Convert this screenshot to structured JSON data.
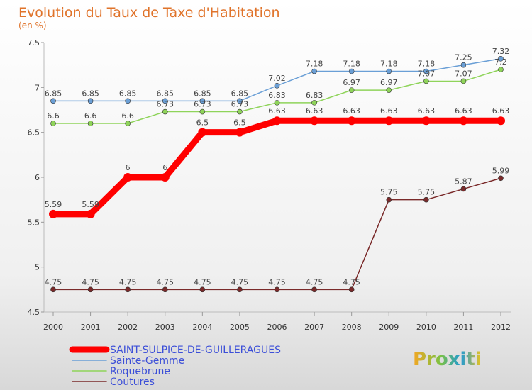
{
  "chart_data": {
    "type": "line",
    "title": "Evolution du Taux de Taxe d'Habitation",
    "subtitle": "(en %)",
    "categories": [
      "2000",
      "2001",
      "2002",
      "2003",
      "2004",
      "2005",
      "2006",
      "2007",
      "2008",
      "2009",
      "2010",
      "2011",
      "2012"
    ],
    "ylim": [
      4.5,
      7.5
    ],
    "yticks": [
      "4.5",
      "5",
      "5.5",
      "6",
      "6.5",
      "7",
      "7.5"
    ],
    "grid": false,
    "legend_position": "bottom-left",
    "series": [
      {
        "name": "SAINT-SULPICE-DE-GUILLERAGUES",
        "color": "#ff0000",
        "values": [
          5.59,
          5.59,
          6,
          6,
          6.5,
          6.5,
          6.63,
          6.63,
          6.63,
          6.63,
          6.63,
          6.63,
          6.63
        ],
        "labels": [
          "5.59",
          "5.59",
          "6",
          "6",
          "6.5",
          "6.5",
          "6.63",
          "6.63",
          "6.63",
          "6.63",
          "6.63",
          "6.63",
          "6.63"
        ]
      },
      {
        "name": "Sainte-Gemme",
        "color": "#6a9fd6",
        "values": [
          6.85,
          6.85,
          6.85,
          6.85,
          6.85,
          6.85,
          7.02,
          7.18,
          7.18,
          7.18,
          7.18,
          7.25,
          7.32
        ],
        "labels": [
          "6.85",
          "6.85",
          "6.85",
          "6.85",
          "6.85",
          "6.85",
          "7.02",
          "7.18",
          "7.18",
          "7.18",
          "7.18",
          "7.25",
          "7.32"
        ]
      },
      {
        "name": "Roquebrune",
        "color": "#8fd45a",
        "values": [
          6.6,
          6.6,
          6.6,
          6.73,
          6.73,
          6.73,
          6.83,
          6.83,
          6.97,
          6.97,
          7.07,
          7.07,
          7.2
        ],
        "labels": [
          "6.6",
          "6.6",
          "6.6",
          "6.73",
          "6.73",
          "6.73",
          "6.83",
          "6.83",
          "6.97",
          "6.97",
          "7.07",
          "7.07",
          "7.2"
        ]
      },
      {
        "name": "Coutures",
        "color": "#7a2a2a",
        "values": [
          4.75,
          4.75,
          4.75,
          4.75,
          4.75,
          4.75,
          4.75,
          4.75,
          4.75,
          5.75,
          5.75,
          5.87,
          5.99
        ],
        "labels": [
          "4.75",
          "4.75",
          "4.75",
          "4.75",
          "4.75",
          "4.75",
          "4.75",
          "4.75",
          "4.75",
          "5.75",
          "5.75",
          "5.87",
          "5.99"
        ]
      }
    ]
  },
  "branding": {
    "logo_text": "Proxiti"
  }
}
